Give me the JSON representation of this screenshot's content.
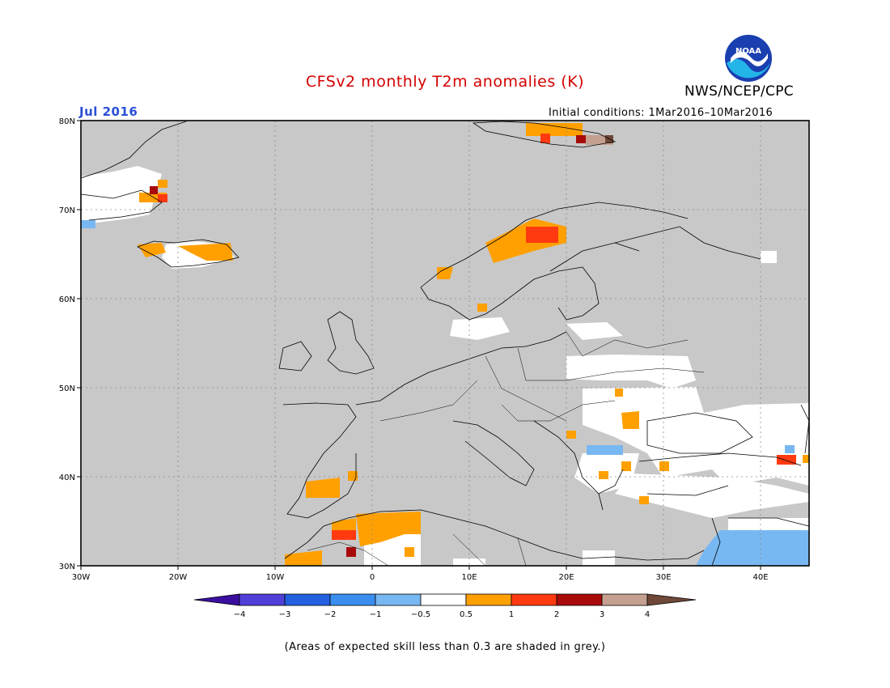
{
  "header": {
    "title": "CFSv2 monthly T2m anomalies (K)",
    "agency": "NWS/NCEP/CPC",
    "logo_text": "NOAA",
    "month": "Jul 2016",
    "initial_conditions": "Initial conditions: 1Mar2016–10Mar2016"
  },
  "colors": {
    "title": "#d40000",
    "month": "#2a4fd6",
    "ocean_grey": "#c8c8c8",
    "land_outline": "#000000",
    "grid": "#8a8a8a"
  },
  "map": {
    "lat_labels": [
      "80N",
      "70N",
      "60N",
      "50N",
      "40N",
      "30N"
    ],
    "lon_labels": [
      "30W",
      "20W",
      "10W",
      "0",
      "10E",
      "20E",
      "30E",
      "40E"
    ],
    "lon_extent": [
      -30,
      45
    ],
    "lat_extent": [
      30,
      80
    ]
  },
  "colorbar": {
    "tick_labels": [
      "−4",
      "−3",
      "−2",
      "−1",
      "−0.5",
      "0.5",
      "1",
      "2",
      "3",
      "4"
    ],
    "colors": [
      "#3a0fa0",
      "#5040d8",
      "#2260e0",
      "#3a8ef0",
      "#78b8f2",
      "#ffffff",
      "#ffa000",
      "#ff3a10",
      "#a80a0a",
      "#c4a090",
      "#704838"
    ]
  },
  "footnote": "(Areas of expected skill less than 0.3 are shaded in grey.)"
}
